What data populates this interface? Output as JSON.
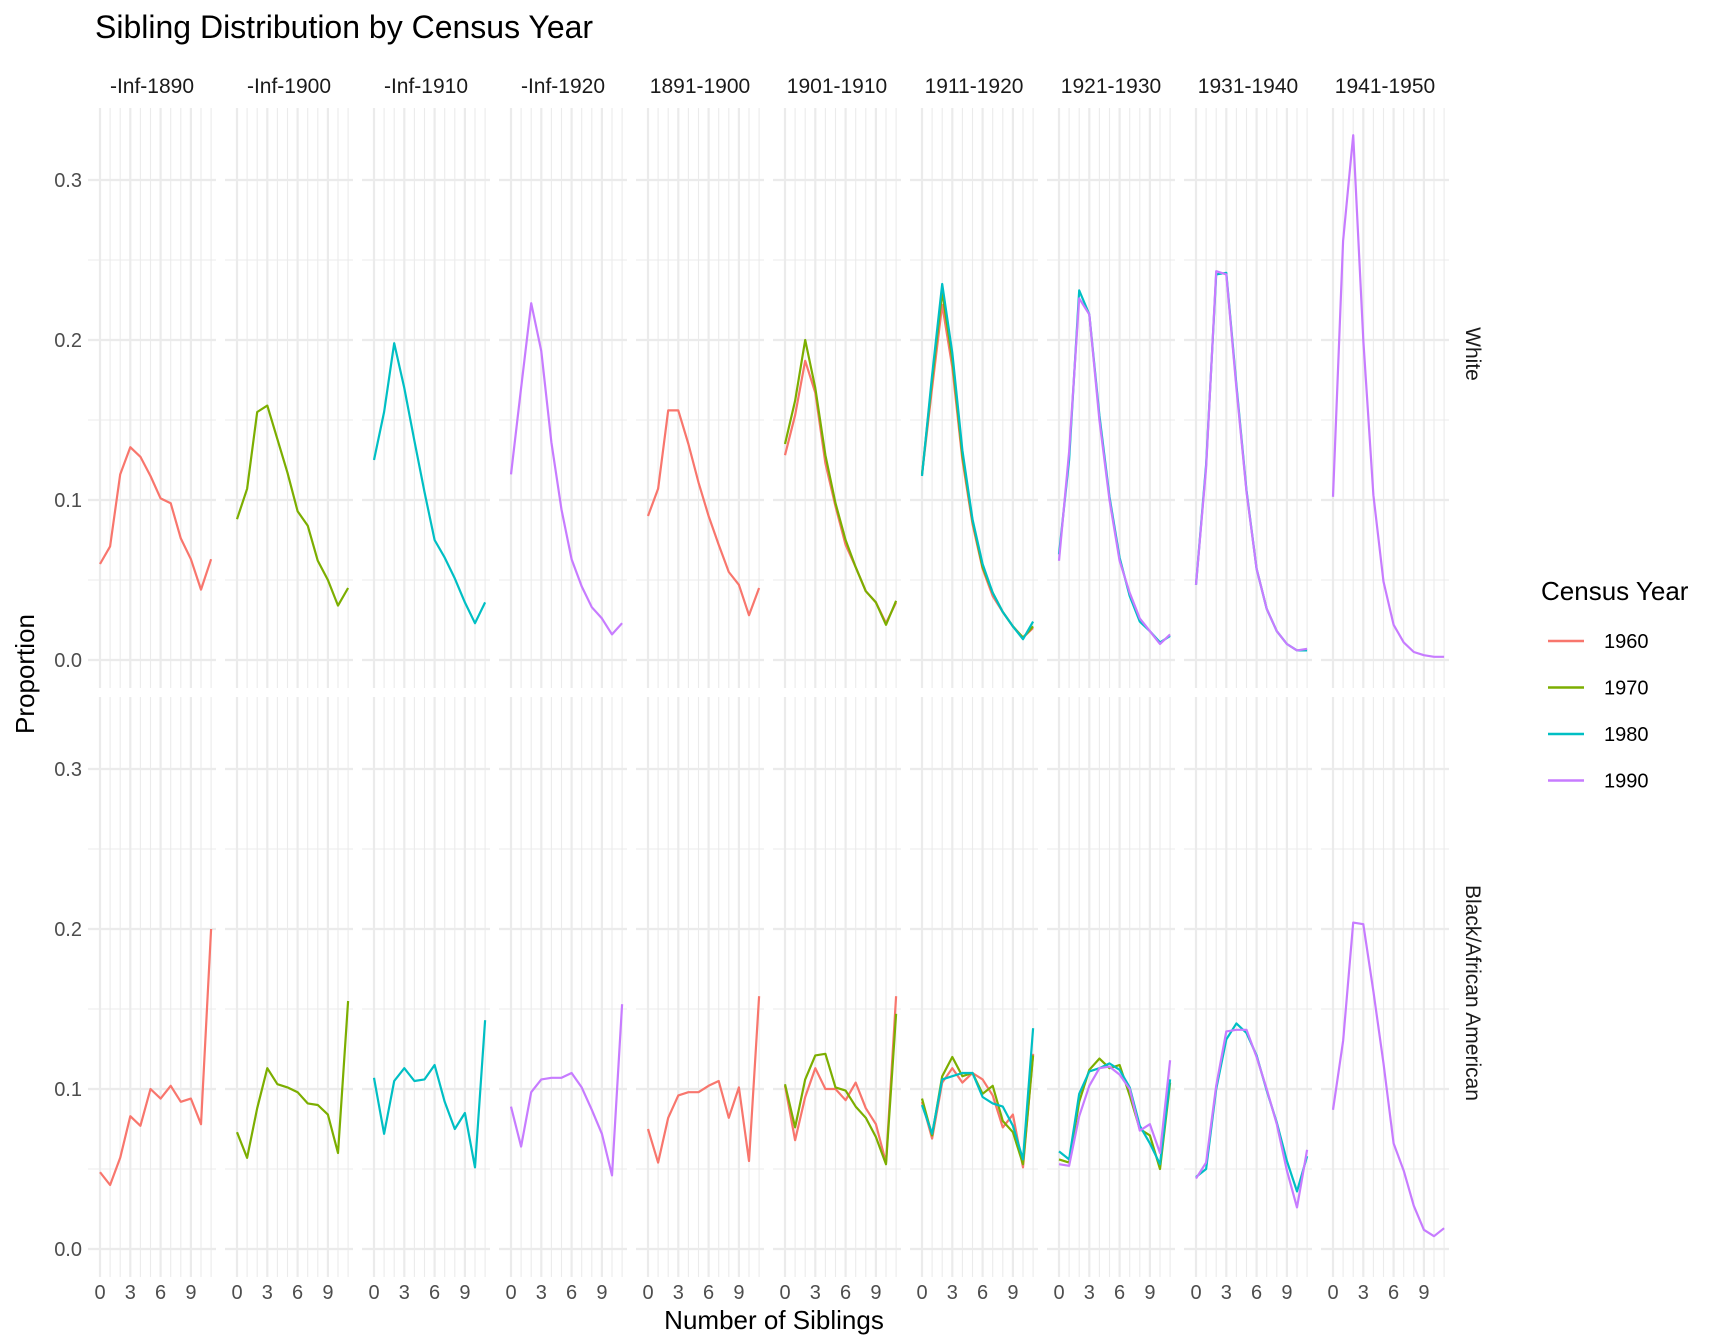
{
  "chart_data": {
    "type": "line",
    "title": "Sibling Distribution by Census Year",
    "xlabel": "Number of Siblings",
    "ylabel": "Proportion",
    "xlim": [
      0,
      11
    ],
    "ylim": [
      0,
      0.35
    ],
    "x_ticks": [
      0,
      3,
      6,
      9
    ],
    "y_ticks": [
      0.0,
      0.1,
      0.2,
      0.3
    ],
    "y_tick_labels": [
      "0.0",
      "0.1",
      "0.2",
      "0.3"
    ],
    "columns": [
      "-Inf-1890",
      "-Inf-1900",
      "-Inf-1910",
      "-Inf-1920",
      "1891-1900",
      "1901-1910",
      "1911-1920",
      "1921-1930",
      "1931-1940",
      "1941-1950"
    ],
    "rows": [
      "White",
      "Black/African American"
    ],
    "legend": {
      "title": "Census Year",
      "position": "right",
      "entries": [
        {
          "name": "1960",
          "color": "#F8766D"
        },
        {
          "name": "1970",
          "color": "#7CAE00"
        },
        {
          "name": "1980",
          "color": "#00BFC4"
        },
        {
          "name": "1990",
          "color": "#C77CFF"
        }
      ]
    },
    "panels": [
      {
        "row": 0,
        "col": 0,
        "series": [
          {
            "name": "1960",
            "values": [
              0.06,
              0.071,
              0.116,
              0.133,
              0.127,
              0.115,
              0.101,
              0.098,
              0.076,
              0.063,
              0.044,
              0.063
            ]
          }
        ]
      },
      {
        "row": 0,
        "col": 1,
        "series": [
          {
            "name": "1970",
            "values": [
              0.088,
              0.107,
              0.155,
              0.159,
              0.138,
              0.117,
              0.093,
              0.084,
              0.062,
              0.05,
              0.034,
              0.045
            ]
          }
        ]
      },
      {
        "row": 0,
        "col": 2,
        "series": [
          {
            "name": "1980",
            "values": [
              0.125,
              0.155,
              0.198,
              0.17,
              0.137,
              0.105,
              0.075,
              0.064,
              0.051,
              0.036,
              0.023,
              0.036
            ]
          }
        ]
      },
      {
        "row": 0,
        "col": 3,
        "series": [
          {
            "name": "1990",
            "values": [
              0.116,
              0.17,
              0.223,
              0.193,
              0.136,
              0.094,
              0.063,
              0.046,
              0.033,
              0.026,
              0.016,
              0.023
            ]
          }
        ]
      },
      {
        "row": 0,
        "col": 4,
        "series": [
          {
            "name": "1960",
            "values": [
              0.09,
              0.107,
              0.156,
              0.156,
              0.135,
              0.111,
              0.09,
              0.072,
              0.055,
              0.047,
              0.028,
              0.045
            ]
          }
        ]
      },
      {
        "row": 0,
        "col": 5,
        "series": [
          {
            "name": "1960",
            "values": [
              0.128,
              0.153,
              0.187,
              0.167,
              0.123,
              0.096,
              0.072,
              0.058,
              0.043,
              0.036,
              0.023,
              0.036
            ]
          },
          {
            "name": "1970",
            "values": [
              0.135,
              0.162,
              0.2,
              0.17,
              0.128,
              0.098,
              0.075,
              0.058,
              0.043,
              0.036,
              0.022,
              0.037
            ]
          }
        ]
      },
      {
        "row": 0,
        "col": 6,
        "series": [
          {
            "name": "1960",
            "values": [
              0.116,
              0.17,
              0.222,
              0.183,
              0.125,
              0.085,
              0.057,
              0.04,
              0.03,
              0.021,
              0.014,
              0.02
            ]
          },
          {
            "name": "1970",
            "values": [
              0.116,
              0.175,
              0.23,
              0.188,
              0.128,
              0.087,
              0.058,
              0.042,
              0.03,
              0.021,
              0.014,
              0.021
            ]
          },
          {
            "name": "1980",
            "values": [
              0.115,
              0.178,
              0.235,
              0.192,
              0.131,
              0.088,
              0.06,
              0.042,
              0.03,
              0.021,
              0.013,
              0.024
            ]
          }
        ]
      },
      {
        "row": 0,
        "col": 7,
        "series": [
          {
            "name": "1980",
            "values": [
              0.066,
              0.125,
              0.231,
              0.216,
              0.153,
              0.102,
              0.064,
              0.04,
              0.024,
              0.018,
              0.011,
              0.015
            ]
          },
          {
            "name": "1990",
            "values": [
              0.062,
              0.13,
              0.226,
              0.216,
              0.15,
              0.1,
              0.062,
              0.042,
              0.026,
              0.018,
              0.01,
              0.016
            ]
          }
        ]
      },
      {
        "row": 0,
        "col": 8,
        "series": [
          {
            "name": "1980",
            "values": [
              0.047,
              0.122,
              0.241,
              0.242,
              0.172,
              0.106,
              0.057,
              0.032,
              0.018,
              0.01,
              0.006,
              0.006
            ]
          },
          {
            "name": "1990",
            "values": [
              0.047,
              0.12,
              0.243,
              0.241,
              0.17,
              0.105,
              0.057,
              0.032,
              0.018,
              0.01,
              0.006,
              0.007
            ]
          }
        ]
      },
      {
        "row": 0,
        "col": 9,
        "series": [
          {
            "name": "1990",
            "values": [
              0.102,
              0.262,
              0.328,
              0.2,
              0.103,
              0.049,
              0.022,
              0.011,
              0.005,
              0.003,
              0.002,
              0.002
            ]
          }
        ]
      },
      {
        "row": 1,
        "col": 0,
        "series": [
          {
            "name": "1960",
            "values": [
              0.048,
              0.04,
              0.057,
              0.083,
              0.077,
              0.1,
              0.094,
              0.102,
              0.092,
              0.094,
              0.078,
              0.2
            ]
          }
        ]
      },
      {
        "row": 1,
        "col": 1,
        "series": [
          {
            "name": "1970",
            "values": [
              0.073,
              0.057,
              0.088,
              0.113,
              0.103,
              0.101,
              0.098,
              0.091,
              0.09,
              0.084,
              0.06,
              0.155
            ]
          }
        ]
      },
      {
        "row": 1,
        "col": 2,
        "series": [
          {
            "name": "1980",
            "values": [
              0.107,
              0.072,
              0.105,
              0.113,
              0.105,
              0.106,
              0.115,
              0.092,
              0.075,
              0.085,
              0.051,
              0.143
            ]
          }
        ]
      },
      {
        "row": 1,
        "col": 3,
        "series": [
          {
            "name": "1990",
            "values": [
              0.089,
              0.064,
              0.098,
              0.106,
              0.107,
              0.107,
              0.11,
              0.101,
              0.087,
              0.072,
              0.046,
              0.153
            ]
          }
        ]
      },
      {
        "row": 1,
        "col": 4,
        "series": [
          {
            "name": "1960",
            "values": [
              0.075,
              0.054,
              0.082,
              0.096,
              0.098,
              0.098,
              0.102,
              0.105,
              0.082,
              0.101,
              0.055,
              0.158
            ]
          }
        ]
      },
      {
        "row": 1,
        "col": 5,
        "series": [
          {
            "name": "1960",
            "values": [
              0.102,
              0.068,
              0.095,
              0.113,
              0.1,
              0.1,
              0.093,
              0.104,
              0.088,
              0.078,
              0.054,
              0.158
            ]
          },
          {
            "name": "1970",
            "values": [
              0.103,
              0.076,
              0.106,
              0.121,
              0.122,
              0.101,
              0.099,
              0.089,
              0.082,
              0.07,
              0.053,
              0.147
            ]
          }
        ]
      },
      {
        "row": 1,
        "col": 6,
        "series": [
          {
            "name": "1960",
            "values": [
              0.092,
              0.069,
              0.104,
              0.113,
              0.104,
              0.11,
              0.106,
              0.096,
              0.076,
              0.084,
              0.051,
              0.122
            ]
          },
          {
            "name": "1970",
            "values": [
              0.094,
              0.071,
              0.108,
              0.12,
              0.108,
              0.11,
              0.097,
              0.102,
              0.08,
              0.073,
              0.053,
              0.121
            ]
          },
          {
            "name": "1980",
            "values": [
              0.09,
              0.072,
              0.106,
              0.108,
              0.11,
              0.11,
              0.095,
              0.091,
              0.089,
              0.077,
              0.056,
              0.138
            ]
          }
        ]
      },
      {
        "row": 1,
        "col": 7,
        "series": [
          {
            "name": "1970",
            "values": [
              0.056,
              0.054,
              0.092,
              0.112,
              0.119,
              0.113,
              0.115,
              0.096,
              0.075,
              0.071,
              0.05,
              0.104
            ]
          },
          {
            "name": "1980",
            "values": [
              0.061,
              0.056,
              0.097,
              0.111,
              0.113,
              0.116,
              0.112,
              0.101,
              0.077,
              0.066,
              0.053,
              0.106
            ]
          },
          {
            "name": "1990",
            "values": [
              0.053,
              0.052,
              0.083,
              0.102,
              0.113,
              0.114,
              0.109,
              0.1,
              0.074,
              0.078,
              0.06,
              0.118
            ]
          }
        ]
      },
      {
        "row": 1,
        "col": 8,
        "series": [
          {
            "name": "1980",
            "values": [
              0.045,
              0.05,
              0.1,
              0.131,
              0.141,
              0.135,
              0.121,
              0.099,
              0.079,
              0.055,
              0.036,
              0.058
            ]
          },
          {
            "name": "1990",
            "values": [
              0.044,
              0.054,
              0.102,
              0.136,
              0.137,
              0.137,
              0.12,
              0.1,
              0.078,
              0.049,
              0.026,
              0.062
            ]
          }
        ]
      },
      {
        "row": 1,
        "col": 9,
        "series": [
          {
            "name": "1990",
            "values": [
              0.087,
              0.13,
              0.204,
              0.203,
              0.161,
              0.116,
              0.066,
              0.049,
              0.027,
              0.012,
              0.008,
              0.013
            ]
          }
        ]
      }
    ]
  }
}
